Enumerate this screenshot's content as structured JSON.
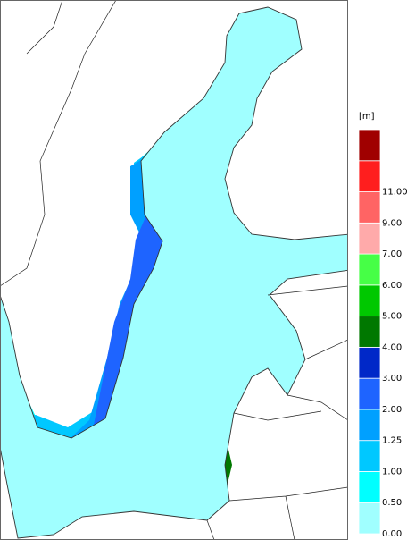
{
  "legend": {
    "unit": "[m]",
    "labels": [
      "0.00",
      "0.50",
      "1.00",
      "1.25",
      "2.00",
      "3.00",
      "4.00",
      "5.00",
      "6.00",
      "7.00",
      "9.00",
      "11.00"
    ],
    "colors": [
      "#a0ffff",
      "#00ffff",
      "#00c8ff",
      "#00a0ff",
      "#1e64ff",
      "#0028c8",
      "#007800",
      "#00c800",
      "#46ff46",
      "#ffaaaa",
      "#ff6464",
      "#ff1e1e",
      "#a00000"
    ]
  }
}
